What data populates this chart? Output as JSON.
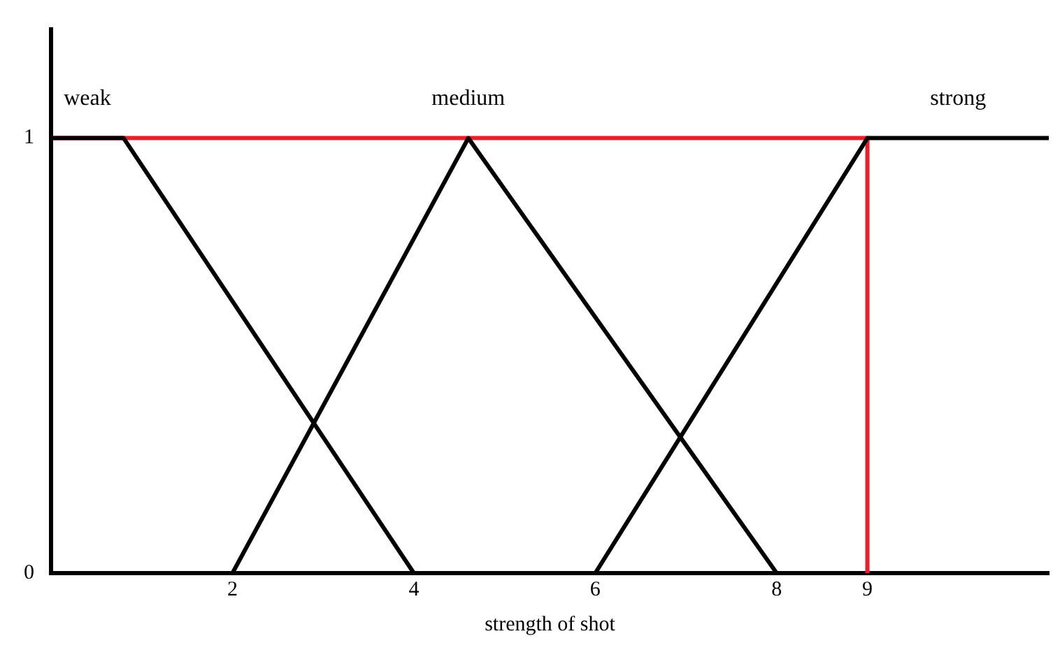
{
  "chart_data": {
    "type": "line",
    "xlabel": "strength of shot",
    "xlim": [
      0,
      11
    ],
    "xticks": [
      2,
      4,
      6,
      8,
      9
    ],
    "ylim": [
      0,
      1.25
    ],
    "yticks": [
      0,
      1
    ],
    "grid": false,
    "legend": false,
    "marker": "none",
    "line_style": "solid",
    "series": [
      {
        "name": "weak",
        "color": "#000000",
        "x": [
          0,
          0.8,
          4
        ],
        "values": [
          1,
          1,
          0
        ]
      },
      {
        "name": "medium",
        "color": "#000000",
        "x": [
          2,
          4.6,
          8
        ],
        "values": [
          0,
          1,
          0
        ]
      },
      {
        "name": "strong",
        "color": "#000000",
        "x": [
          6,
          9,
          11
        ],
        "values": [
          0,
          1,
          1
        ]
      },
      {
        "color": "#e8202a",
        "x": [
          0,
          9,
          9
        ],
        "values": [
          1,
          1,
          0
        ]
      }
    ]
  }
}
